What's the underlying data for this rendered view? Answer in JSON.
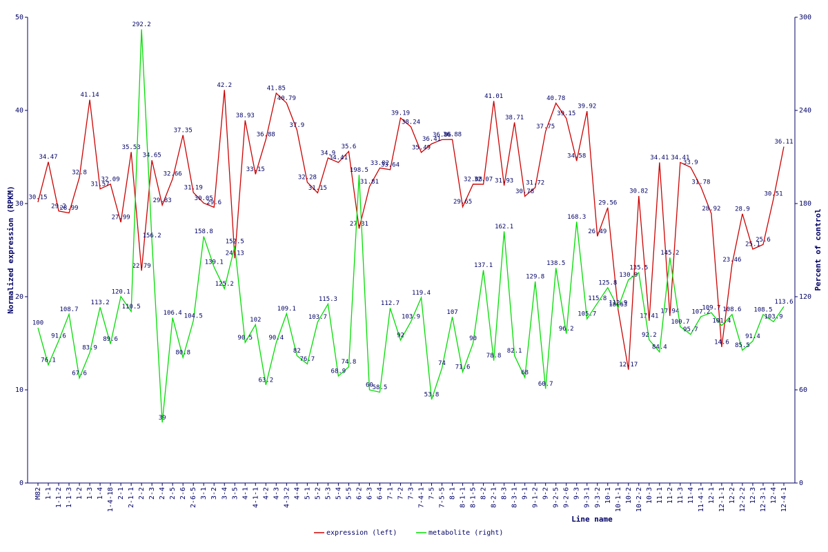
{
  "chart_data": {
    "type": "line",
    "x_label": "Line name",
    "y_label": "Normalized expression (RPKM)",
    "y2_label": "Percent of control",
    "categories": [
      "M82",
      "1-1",
      "1-1-2",
      "1-1-3",
      "1-2",
      "1-3",
      "1-4",
      "1-4-18",
      "2-1",
      "2-1-1",
      "2-2",
      "2-3",
      "2-4",
      "2-5",
      "2-6",
      "2-6-5",
      "3-1",
      "3-2",
      "3-4",
      "3-5",
      "4-1",
      "4-1-1",
      "4-2",
      "4-3",
      "4-3-2",
      "4-4",
      "5-1",
      "5-2",
      "5-3",
      "5-4",
      "5-5",
      "6-2",
      "6-3",
      "6-4",
      "7-1",
      "7-2",
      "7-3",
      "7-4-1",
      "7-5",
      "7-5-5",
      "8-1",
      "8-1-1",
      "8-1-5",
      "8-2",
      "8-2-1",
      "8-3",
      "8-3-1",
      "9-1",
      "9-1-2",
      "9-2",
      "9-2-5",
      "9-2-6",
      "9-3",
      "9-3-1",
      "9-3-2",
      "10-1",
      "10-1-1",
      "10-2",
      "10-2-2",
      "10-3",
      "11-1",
      "11-2",
      "11-3",
      "11-4",
      "11-4-1",
      "12-1",
      "12-1-1",
      "12-2",
      "12-2-2",
      "12-3",
      "12-3-1",
      "12-4",
      "12-4-1"
    ],
    "series": [
      {
        "name": "expression (left)",
        "color": "#cc0000",
        "axis": "y",
        "values": [
          30.15,
          34.47,
          29.2,
          28.99,
          32.8,
          41.14,
          31.57,
          32.09,
          27.99,
          35.53,
          22.79,
          34.65,
          29.83,
          32.66,
          37.35,
          31.19,
          30.05,
          29.6,
          42.2,
          24.13,
          38.93,
          33.15,
          36.88,
          41.85,
          40.79,
          37.9,
          32.28,
          31.15,
          34.9,
          34.41,
          35.6,
          27.31,
          31.81,
          33.82,
          33.64,
          39.19,
          38.24,
          35.49,
          36.41,
          36.86,
          36.88,
          29.65,
          32.08,
          32.07,
          41.01,
          31.93,
          38.71,
          30.78,
          31.72,
          37.75,
          40.78,
          39.15,
          34.58,
          39.92,
          26.49,
          29.56,
          18.63,
          12.17,
          30.82,
          17.41,
          34.41,
          17.94,
          34.41,
          33.9,
          31.78,
          28.92,
          14.6,
          23.46,
          28.9,
          25.1,
          25.6,
          30.51,
          36.11
        ]
      },
      {
        "name": "metabolite (right)",
        "color": "#00dd00",
        "axis": "y2",
        "values": [
          100,
          76.1,
          91.6,
          108.7,
          67.6,
          83.9,
          113.2,
          89.6,
          120.1,
          110.5,
          292.2,
          156.2,
          39,
          106.4,
          80.8,
          104.5,
          158.8,
          139.1,
          125.2,
          152.5,
          90.5,
          102,
          63.2,
          90.4,
          109.1,
          82,
          76.7,
          103.7,
          115.3,
          68.9,
          74.8,
          198.5,
          60,
          58.5,
          112.7,
          92,
          103.9,
          119.4,
          53.8,
          74,
          107,
          71.6,
          90,
          137.1,
          78.8,
          162.1,
          82.1,
          68,
          129.8,
          60.7,
          138.5,
          96.2,
          168.3,
          105.7,
          115.8,
          125.8,
          112.9,
          130.9,
          135.5,
          92.2,
          84.4,
          145.2,
          100.7,
          95.7,
          107.2,
          109.7,
          101.4,
          108.6,
          85.5,
          91.4,
          108.5,
          103.9,
          113.6
        ]
      }
    ],
    "ylim": [
      0,
      50
    ],
    "yticks": [
      0,
      10,
      20,
      30,
      40,
      50
    ],
    "y2lim": [
      0,
      300
    ],
    "y2ticks": [
      0,
      60,
      120,
      180,
      240,
      300
    ],
    "legend": "bottom"
  }
}
